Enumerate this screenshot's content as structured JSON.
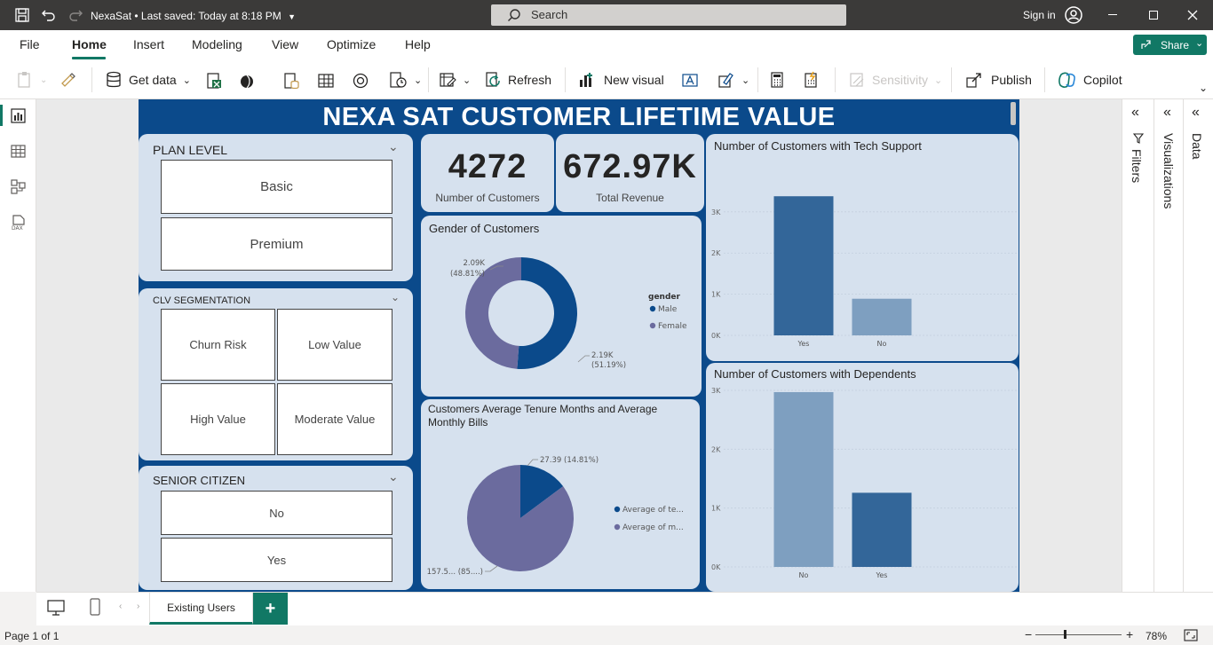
{
  "app": {
    "title": "NexaSat",
    "saved_status": "Last saved: Today at 8:18 PM",
    "search_placeholder": "Search",
    "sign_in": "Sign in"
  },
  "menu": {
    "file": "File",
    "home": "Home",
    "insert": "Insert",
    "modeling": "Modeling",
    "view": "View",
    "optimize": "Optimize",
    "help": "Help",
    "share": "Share"
  },
  "ribbon": {
    "get_data": "Get data",
    "refresh": "Refresh",
    "new_visual": "New visual",
    "sensitivity": "Sensitivity",
    "publish": "Publish",
    "copilot": "Copilot"
  },
  "report": {
    "title": "NEXA SAT CUSTOMER LIFETIME VALUE",
    "plan_slicer": {
      "title": "PLAN LEVEL",
      "items": [
        "Basic",
        "Premium"
      ]
    },
    "clv_slicer": {
      "title": "CLV SEGMENTATION",
      "items": [
        "Churn Risk",
        "Low Value",
        "High Value",
        "Moderate Value"
      ]
    },
    "senior_slicer": {
      "title": "SENIOR CITIZEN",
      "items": [
        "No",
        "Yes"
      ]
    },
    "kpi_customers": {
      "value": "4272",
      "label": "Number of Customers"
    },
    "kpi_revenue": {
      "value": "672.97K",
      "label": "Total Revenue"
    }
  },
  "chart_data": [
    {
      "type": "pie",
      "variant": "donut",
      "title": "Gender of Customers",
      "legend_title": "gender",
      "legend_placement": "right",
      "slices": [
        {
          "name": "Male",
          "value": 2190,
          "label": "2.19K",
          "percent_label": "(51.19%)",
          "color": "#0b4a8b"
        },
        {
          "name": "Female",
          "value": 2090,
          "label": "2.09K",
          "percent_label": "(48.81%)",
          "color": "#6b6b9e"
        }
      ]
    },
    {
      "type": "pie",
      "title": "Customers Average Tenure Months and Average Monthly Bills",
      "legend_placement": "right",
      "slices": [
        {
          "name": "Average of te...",
          "value": 27.39,
          "label": "27.39 (14.81%)",
          "color": "#0b4a8b"
        },
        {
          "name": "Average of m...",
          "value": 157.5,
          "label": "157.5... (85....)",
          "color": "#6b6b9e"
        }
      ]
    },
    {
      "type": "bar",
      "title": "Number of Customers with Tech Support",
      "categories": [
        "Yes",
        "No"
      ],
      "values": [
        3380,
        890
      ],
      "colors": [
        "#336699",
        "#7e9fc0"
      ],
      "ylim": [
        0,
        3600
      ],
      "yticks": [
        "0K",
        "1K",
        "2K",
        "3K"
      ],
      "grid": true
    },
    {
      "type": "bar",
      "title": "Number of Customers with Dependents",
      "categories": [
        "No",
        "Yes"
      ],
      "values": [
        2970,
        1260
      ],
      "colors": [
        "#7e9fc0",
        "#336699"
      ],
      "ylim": [
        0,
        3000
      ],
      "yticks": [
        "0K",
        "1K",
        "2K",
        "3K"
      ],
      "grid": true
    }
  ],
  "panes": {
    "filters": "Filters",
    "visualizations": "Visualizations",
    "data": "Data"
  },
  "pages": {
    "tabs": [
      "Existing Users"
    ]
  },
  "status": {
    "page": "Page 1 of 1",
    "zoom": "78%"
  }
}
